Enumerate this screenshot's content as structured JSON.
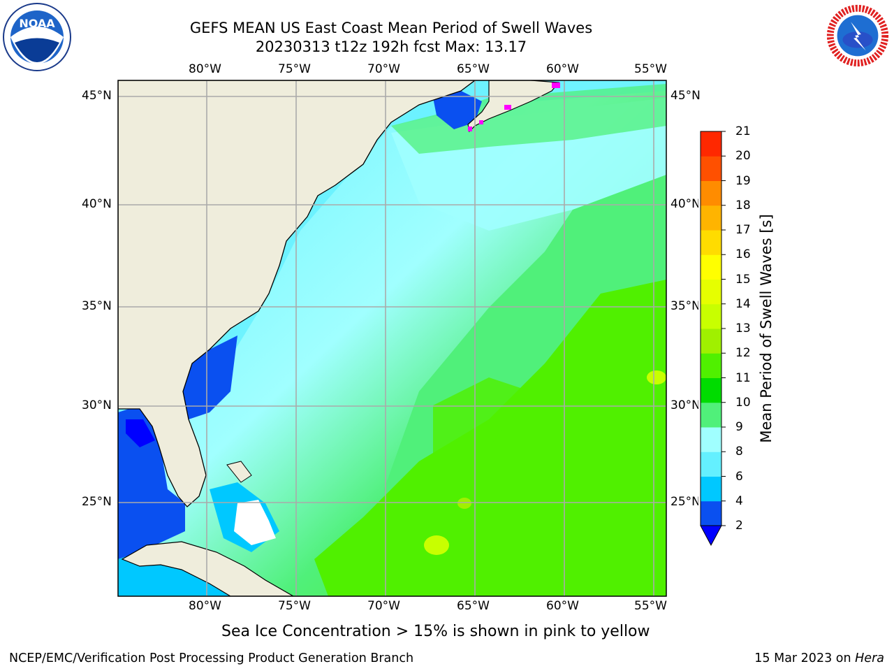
{
  "title": {
    "line1": "GEFS MEAN US East Coast Mean Period of Swell Waves",
    "line2": "20230313 t12z 192h fcst   Max: 13.17"
  },
  "logos": {
    "left": {
      "icon": "noaa-logo",
      "text": "NOAA",
      "ring_text": "NATIONAL OCEANIC AND ATMOSPHERIC ADMINISTRATION · U.S. DEPARTMENT OF COMMERCE"
    },
    "right": {
      "icon": "nws-logo",
      "ring_text": "NATIONAL WEATHER SERVICE"
    }
  },
  "axes": {
    "lon_labels": [
      "80°W",
      "75°W",
      "70°W",
      "65°W",
      "60°W",
      "55°W"
    ],
    "lat_labels": [
      "45°N",
      "40°N",
      "35°N",
      "30°N",
      "25°N"
    ]
  },
  "colorbar": {
    "label": "Mean Period of Swell Waves [s]",
    "ticks": [
      "2",
      "4",
      "6",
      "8",
      "9",
      "10",
      "11",
      "12",
      "13",
      "14",
      "15",
      "16",
      "17",
      "18",
      "19",
      "20",
      "21"
    ],
    "colors": [
      "#0a50f0",
      "#00c8ff",
      "#64f0ff",
      "#a0ffff",
      "#50f07a",
      "#00dc00",
      "#50f000",
      "#a0f000",
      "#c8ff00",
      "#e6ff00",
      "#ffff00",
      "#ffdc00",
      "#ffb400",
      "#ff8c00",
      "#ff5000",
      "#ff2800",
      "#ff0000"
    ],
    "under_color": "#0000ff"
  },
  "map_colors": {
    "land": "#efeddc",
    "grid": "#aaaaaa",
    "ice": "#ff00ff"
  },
  "ice_note": "Sea Ice Concentration > 15% is shown in pink to yellow",
  "footer": {
    "left": "NCEP/EMC/Verification Post Processing Product Generation Branch",
    "right_date": "15 Mar 2023 on ",
    "right_machine": "Hera"
  }
}
